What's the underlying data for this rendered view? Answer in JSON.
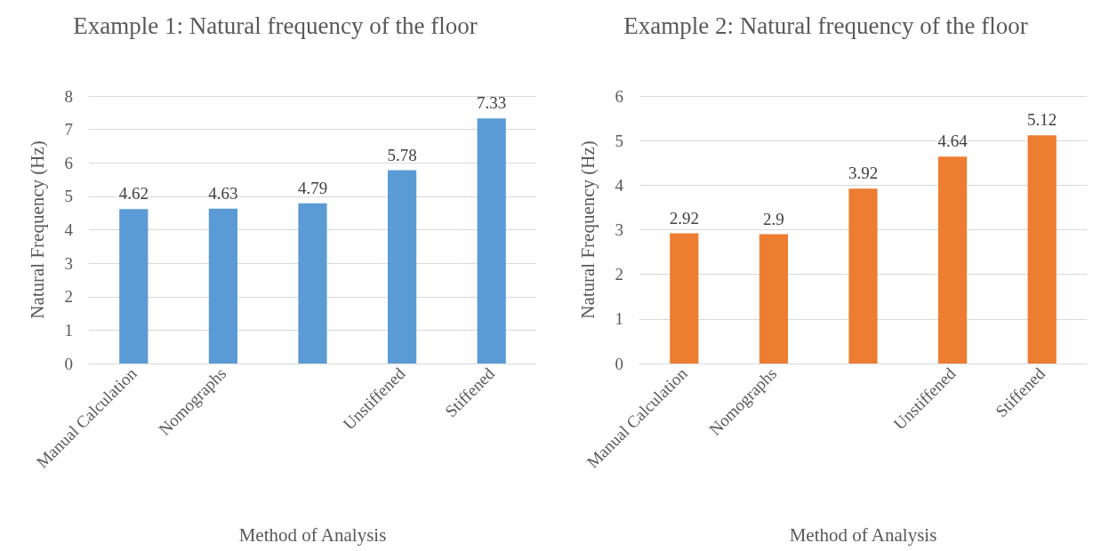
{
  "chart_data": [
    {
      "type": "bar",
      "title": "Example 1: Natural frequency of the floor",
      "xlabel": "Method of Analysis",
      "ylabel": "Natural Frequency (Hz)",
      "categories": [
        "Manual Calculation",
        "Nomographs",
        null,
        "Unstiffened",
        "Stiffened"
      ],
      "values": [
        4.62,
        4.63,
        4.79,
        5.78,
        7.33
      ],
      "color": "#5b9bd5",
      "ylim": [
        0,
        8
      ],
      "yticks": [
        0,
        1,
        2,
        3,
        4,
        5,
        6,
        7,
        8
      ],
      "grid": "y",
      "data_labels": true
    },
    {
      "type": "bar",
      "title": "Example 2: Natural frequency of the floor",
      "xlabel": "Method of Analysis",
      "ylabel": "Natural Frequency (Hz)",
      "categories": [
        "Manual Calculation",
        "Nomographs",
        null,
        "Unstiffened",
        "Stiffened"
      ],
      "values": [
        2.92,
        2.9,
        3.92,
        4.64,
        5.12
      ],
      "color": "#ed7d31",
      "ylim": [
        0,
        6
      ],
      "yticks": [
        0,
        1,
        2,
        3,
        4,
        5,
        6
      ],
      "grid": "y",
      "data_labels": true
    }
  ]
}
